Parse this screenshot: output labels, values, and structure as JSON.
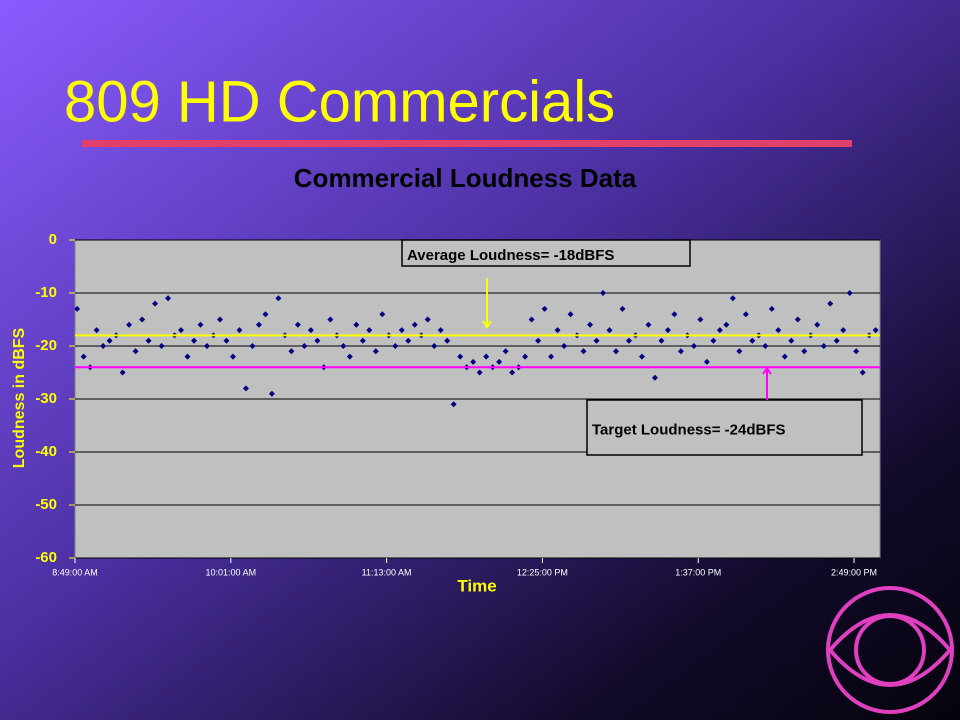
{
  "slide_title": "809 HD Commercials",
  "chart_data": {
    "type": "scatter",
    "title": "Commercial Loudness Data",
    "x_label": "Time",
    "y_label": "Loudness in dBFS",
    "xlim": [
      529,
      901
    ],
    "ylim": [
      -60,
      0
    ],
    "xticks": [
      {
        "value": 529,
        "label": "8:49:00 AM"
      },
      {
        "value": 601,
        "label": "10:01:00 AM"
      },
      {
        "value": 673,
        "label": "11:13:00 AM"
      },
      {
        "value": 745,
        "label": "12:25:00 PM"
      },
      {
        "value": 817,
        "label": "1:37:00 PM"
      },
      {
        "value": 889,
        "label": "2:49:00 PM"
      }
    ],
    "yticks": [
      0,
      -10,
      -20,
      -30,
      -40,
      -50,
      -60
    ],
    "grid": true,
    "color": "#000080",
    "x": [
      530,
      533,
      536,
      539,
      542,
      545,
      548,
      551,
      554,
      557,
      560,
      563,
      566,
      569,
      572,
      575,
      578,
      581,
      584,
      587,
      590,
      593,
      596,
      599,
      602,
      605,
      608,
      611,
      614,
      617,
      620,
      623,
      626,
      629,
      632,
      635,
      638,
      641,
      644,
      647,
      650,
      653,
      656,
      659,
      662,
      665,
      668,
      671,
      674,
      677,
      680,
      683,
      686,
      689,
      692,
      695,
      698,
      701,
      704,
      707,
      710,
      713,
      716,
      719,
      722,
      725,
      728,
      731,
      734,
      737,
      740,
      743,
      746,
      749,
      752,
      755,
      758,
      761,
      764,
      767,
      770,
      773,
      776,
      779,
      782,
      785,
      788,
      791,
      794,
      797,
      800,
      803,
      806,
      809,
      812,
      815,
      818,
      821,
      824,
      827,
      830,
      833,
      836,
      839,
      842,
      845,
      848,
      851,
      854,
      857,
      860,
      863,
      866,
      869,
      872,
      875,
      878,
      881,
      884,
      887,
      890,
      893,
      896,
      899
    ],
    "values": [
      -13,
      -22,
      -24,
      -17,
      -20,
      -19,
      -18,
      -25,
      -16,
      -21,
      -15,
      -19,
      -12,
      -20,
      -11,
      -18,
      -17,
      -22,
      -19,
      -16,
      -20,
      -18,
      -15,
      -19,
      -22,
      -17,
      -28,
      -20,
      -16,
      -14,
      -29,
      -11,
      -18,
      -21,
      -16,
      -20,
      -17,
      -19,
      -24,
      -15,
      -18,
      -20,
      -22,
      -16,
      -19,
      -17,
      -21,
      -14,
      -18,
      -20,
      -17,
      -19,
      -16,
      -18,
      -15,
      -20,
      -17,
      -19,
      -31,
      -22,
      -24,
      -23,
      -25,
      -22,
      -24,
      -23,
      -21,
      -25,
      -24,
      -22,
      -15,
      -19,
      -13,
      -22,
      -17,
      -20,
      -14,
      -18,
      -21,
      -16,
      -19,
      -10,
      -17,
      -21,
      -13,
      -19,
      -18,
      -22,
      -16,
      -26,
      -19,
      -17,
      -14,
      -21,
      -18,
      -20,
      -15,
      -23,
      -19,
      -17,
      -16,
      -11,
      -21,
      -14,
      -19,
      -18,
      -20,
      -13,
      -17,
      -22,
      -19,
      -15,
      -21,
      -18,
      -16,
      -20,
      -12,
      -19,
      -17,
      -10,
      -21,
      -25,
      -18,
      -17
    ],
    "reference_lines": [
      {
        "text": "Average Loudness= -18dBFS",
        "y": -18,
        "color": "#ffff00"
      },
      {
        "text": "Target Loudness= -24dBFS",
        "y": -24,
        "color": "#ff00ff"
      }
    ]
  }
}
